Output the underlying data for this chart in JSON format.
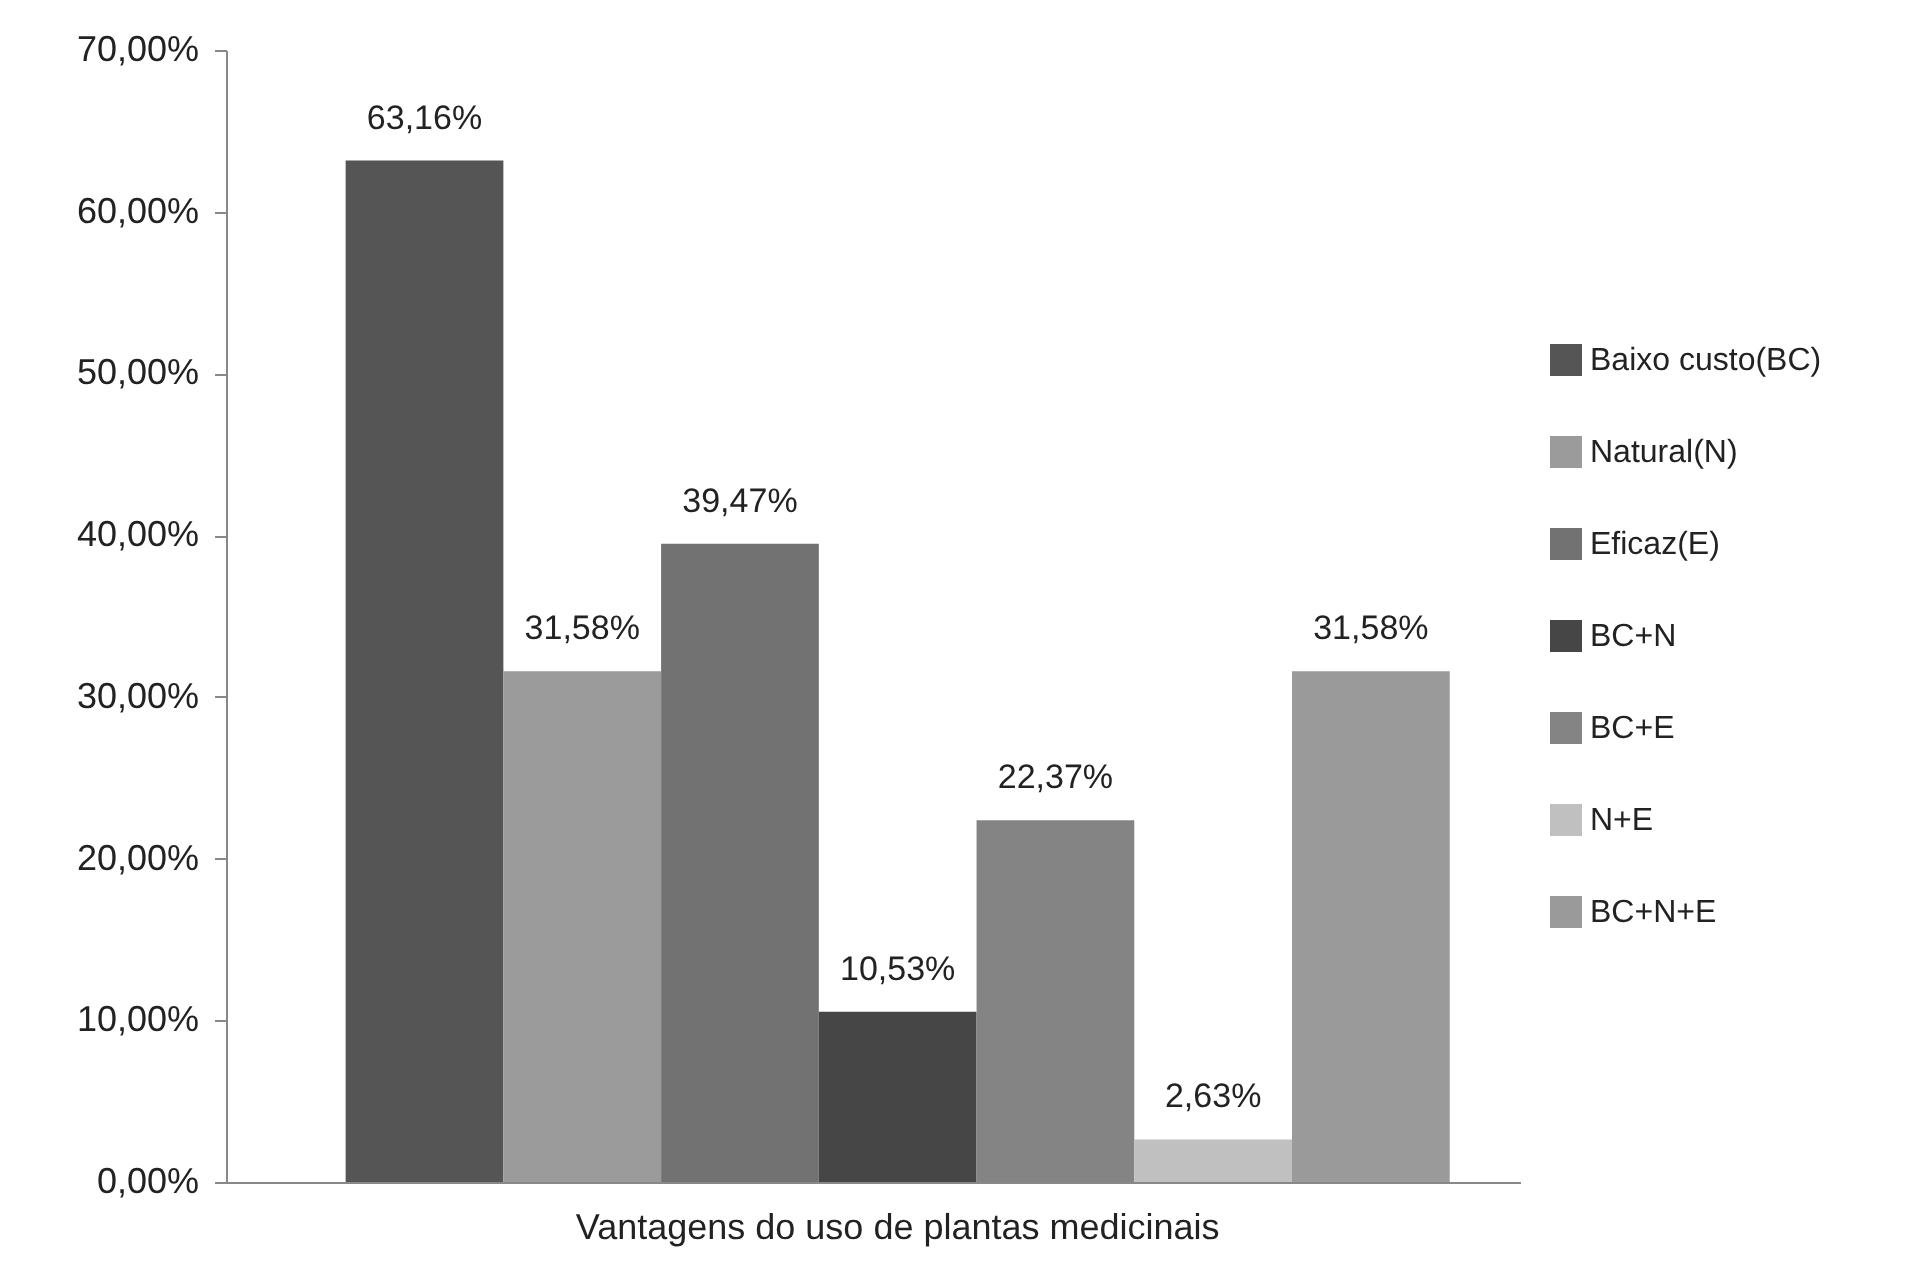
{
  "chart_data": {
    "type": "bar",
    "categories": [
      "Vantagens do uso de plantas medicinais"
    ],
    "series": [
      {
        "name": "Baixo custo(BC)",
        "color": "#555555",
        "values": [
          63.16
        ],
        "value_labels": [
          "63,16%"
        ]
      },
      {
        "name": "Natural(N)",
        "color": "#9b9b9b",
        "values": [
          31.58
        ],
        "value_labels": [
          "31,58%"
        ]
      },
      {
        "name": "Eficaz(E)",
        "color": "#727272",
        "values": [
          39.47
        ],
        "value_labels": [
          "39,47%"
        ]
      },
      {
        "name": "BC+N",
        "color": "#464646",
        "values": [
          10.53
        ],
        "value_labels": [
          "10,53%"
        ]
      },
      {
        "name": "BC+E",
        "color": "#848484",
        "values": [
          22.37
        ],
        "value_labels": [
          "22,37%"
        ]
      },
      {
        "name": "N+E",
        "color": "#c0c0c0",
        "values": [
          2.63
        ],
        "value_labels": [
          "2,63%"
        ]
      },
      {
        "name": "BC+N+E",
        "color": "#9a9a9a",
        "values": [
          31.58
        ],
        "value_labels": [
          "31,58%"
        ]
      }
    ],
    "ylim": [
      0,
      70
    ],
    "yticks": [
      {
        "value": 0,
        "label": "0,00%"
      },
      {
        "value": 10,
        "label": "10,00%"
      },
      {
        "value": 20,
        "label": "20,00%"
      },
      {
        "value": 30,
        "label": "30,00%"
      },
      {
        "value": 40,
        "label": "40,00%"
      },
      {
        "value": 50,
        "label": "50,00%"
      },
      {
        "value": 60,
        "label": "60,00%"
      },
      {
        "value": 70,
        "label": "70,00%"
      }
    ],
    "legend": "right"
  }
}
